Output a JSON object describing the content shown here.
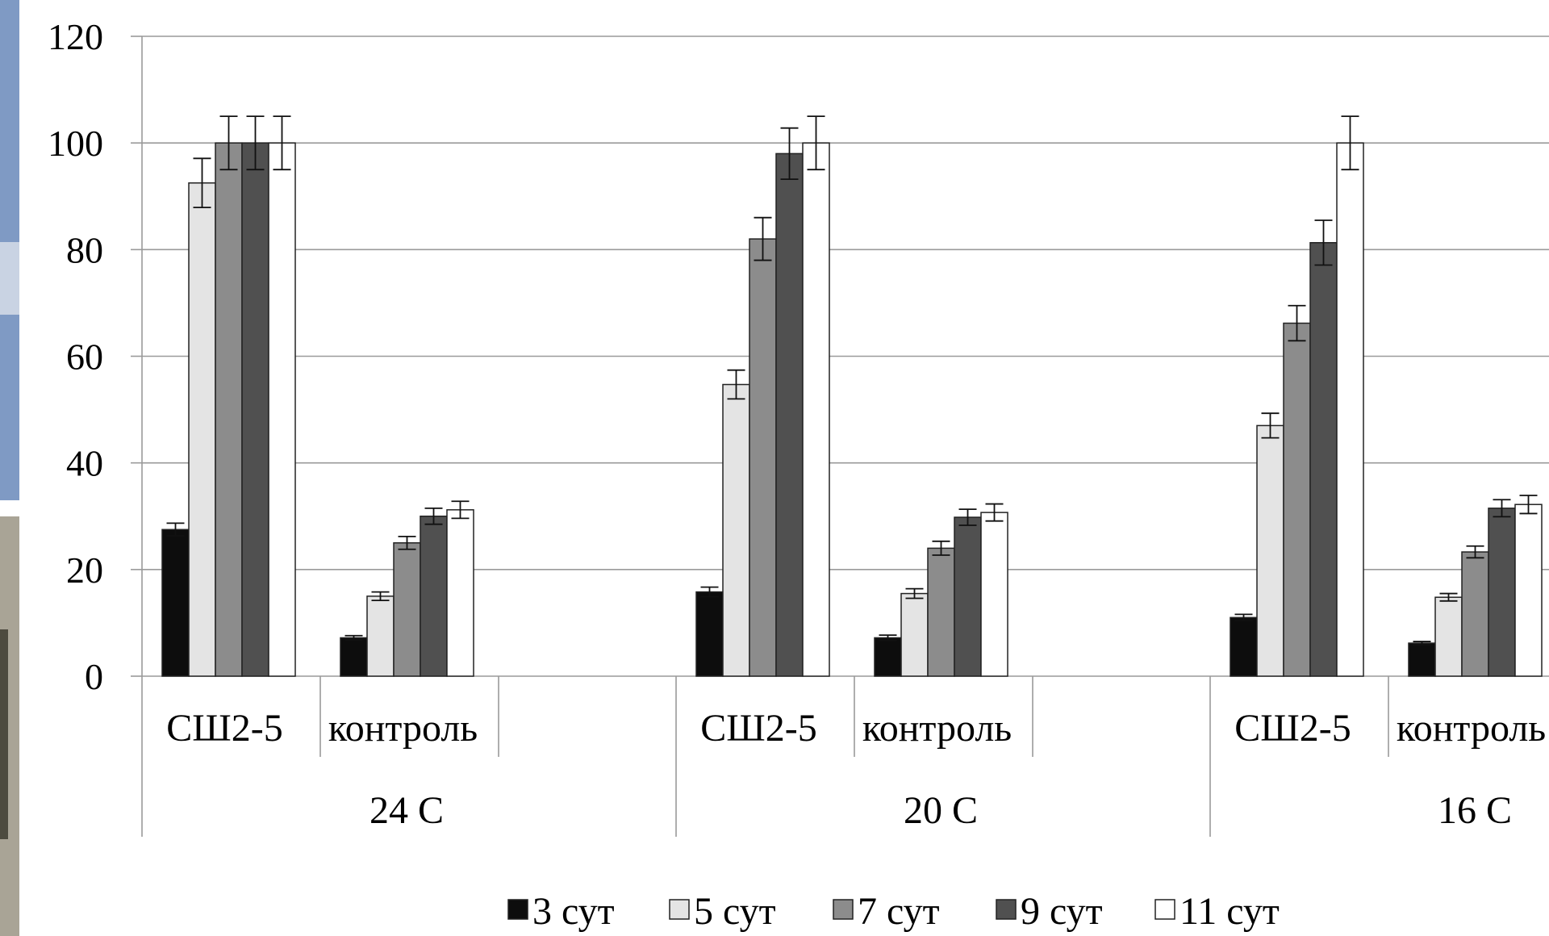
{
  "chart_data": {
    "type": "bar",
    "title": "",
    "xlabel": "",
    "ylabel": "",
    "ylim": [
      0,
      120
    ],
    "y_ticks": [
      0,
      20,
      40,
      60,
      80,
      100,
      120
    ],
    "grid": true,
    "legend_position": "bottom",
    "groups": [
      {
        "label": "24 C",
        "categories": [
          "СШ2-5",
          "контроль"
        ]
      },
      {
        "label": "20 C",
        "categories": [
          "СШ2-5",
          "контроль"
        ]
      },
      {
        "label": "16 C",
        "categories": [
          "СШ2-5",
          "контроль"
        ]
      }
    ],
    "series": [
      {
        "name": "3 сут",
        "color": "#0d0d0d",
        "values": [
          27.5,
          7.2,
          15.8,
          7.2,
          11.0,
          6.2
        ],
        "errors": [
          1.2,
          0.4,
          0.9,
          0.5,
          0.6,
          0.3
        ]
      },
      {
        "name": "5 сут",
        "color": "#e4e4e4",
        "values": [
          92.5,
          15.0,
          54.7,
          15.5,
          47.0,
          14.8
        ],
        "errors": [
          4.6,
          0.8,
          2.7,
          0.9,
          2.3,
          0.7
        ]
      },
      {
        "name": "7 сут",
        "color": "#8c8c8c",
        "values": [
          100,
          25.0,
          82.0,
          24.0,
          66.2,
          23.3
        ],
        "errors": [
          5.0,
          1.2,
          4.0,
          1.3,
          3.3,
          1.1
        ]
      },
      {
        "name": "9 сут",
        "color": "#505050",
        "values": [
          100,
          30.0,
          98.0,
          29.8,
          81.3,
          31.5
        ],
        "errors": [
          5.0,
          1.5,
          4.8,
          1.5,
          4.2,
          1.6
        ]
      },
      {
        "name": "11 сут",
        "color": "#ffffff",
        "values": [
          100,
          31.2,
          100,
          30.7,
          100,
          32.2
        ],
        "errors": [
          5.0,
          1.6,
          5.0,
          1.6,
          5.0,
          1.7
        ]
      }
    ]
  }
}
